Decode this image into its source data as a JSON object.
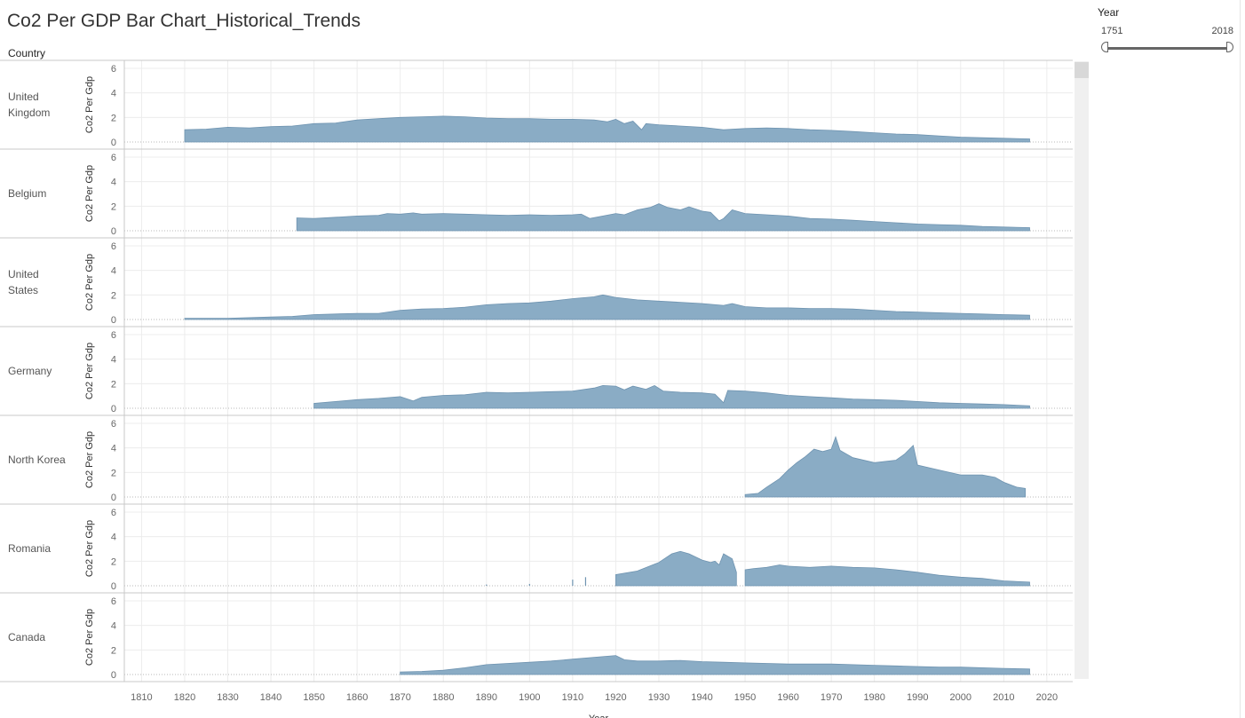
{
  "title": "Co2 Per GDP Bar Chart_Historical_Trends",
  "country_header": "Country",
  "filter": {
    "title": "Year",
    "min_label": "1751",
    "max_label": "2018"
  },
  "colors": {
    "area_fill": "#8aacc5",
    "area_stroke": "#6e93b0",
    "grid": "#ececec",
    "zero_line": "#b9b9b9"
  },
  "chart_data": {
    "type": "area",
    "title": "Co2 Per GDP Bar Chart_Historical_Trends",
    "xlabel": "Year",
    "ylabel": "Co2 Per Gdp",
    "row_label": "Country",
    "xlim": [
      1806,
      2026
    ],
    "xticks": [
      1810,
      1820,
      1830,
      1840,
      1850,
      1860,
      1870,
      1880,
      1890,
      1900,
      1910,
      1920,
      1930,
      1940,
      1950,
      1960,
      1970,
      1980,
      1990,
      2000,
      2010,
      2020
    ],
    "ylim": [
      0,
      6
    ],
    "yticks": [
      0,
      2,
      4,
      6
    ],
    "grid": true,
    "series": [
      {
        "name": "United Kingdom",
        "segments": [
          [
            [
              1820,
              1.0
            ],
            [
              1825,
              1.05
            ],
            [
              1830,
              1.2
            ],
            [
              1835,
              1.15
            ],
            [
              1840,
              1.25
            ],
            [
              1845,
              1.3
            ],
            [
              1850,
              1.5
            ],
            [
              1855,
              1.55
            ],
            [
              1860,
              1.8
            ],
            [
              1865,
              1.9
            ],
            [
              1870,
              2.0
            ],
            [
              1875,
              2.05
            ],
            [
              1880,
              2.1
            ],
            [
              1885,
              2.05
            ],
            [
              1890,
              1.95
            ],
            [
              1895,
              1.9
            ],
            [
              1900,
              1.9
            ],
            [
              1905,
              1.85
            ],
            [
              1910,
              1.85
            ],
            [
              1915,
              1.8
            ],
            [
              1918,
              1.65
            ],
            [
              1920,
              1.85
            ],
            [
              1922,
              1.5
            ],
            [
              1924,
              1.7
            ],
            [
              1926,
              1.0
            ],
            [
              1927,
              1.5
            ],
            [
              1930,
              1.4
            ],
            [
              1935,
              1.3
            ],
            [
              1940,
              1.2
            ],
            [
              1945,
              1.0
            ],
            [
              1950,
              1.1
            ],
            [
              1955,
              1.15
            ],
            [
              1960,
              1.1
            ],
            [
              1965,
              1.0
            ],
            [
              1970,
              0.95
            ],
            [
              1975,
              0.85
            ],
            [
              1980,
              0.75
            ],
            [
              1985,
              0.65
            ],
            [
              1990,
              0.6
            ],
            [
              1995,
              0.5
            ],
            [
              2000,
              0.4
            ],
            [
              2005,
              0.35
            ],
            [
              2010,
              0.3
            ],
            [
              2016,
              0.25
            ]
          ]
        ]
      },
      {
        "name": "Belgium",
        "segments": [
          [
            [
              1846,
              1.05
            ],
            [
              1850,
              1.0
            ],
            [
              1855,
              1.1
            ],
            [
              1860,
              1.2
            ],
            [
              1865,
              1.25
            ],
            [
              1867,
              1.4
            ],
            [
              1870,
              1.35
            ],
            [
              1873,
              1.45
            ],
            [
              1875,
              1.35
            ],
            [
              1880,
              1.4
            ],
            [
              1885,
              1.35
            ],
            [
              1890,
              1.3
            ],
            [
              1895,
              1.25
            ],
            [
              1900,
              1.3
            ],
            [
              1905,
              1.25
            ],
            [
              1910,
              1.3
            ],
            [
              1912,
              1.35
            ],
            [
              1914,
              1.0
            ],
            [
              1917,
              1.2
            ],
            [
              1920,
              1.4
            ],
            [
              1922,
              1.3
            ],
            [
              1925,
              1.7
            ],
            [
              1928,
              1.9
            ],
            [
              1930,
              2.2
            ],
            [
              1932,
              1.9
            ],
            [
              1935,
              1.7
            ],
            [
              1937,
              1.95
            ],
            [
              1940,
              1.6
            ],
            [
              1942,
              1.5
            ],
            [
              1944,
              0.8
            ],
            [
              1945,
              1.0
            ],
            [
              1947,
              1.7
            ],
            [
              1950,
              1.4
            ],
            [
              1955,
              1.3
            ],
            [
              1960,
              1.2
            ],
            [
              1965,
              1.0
            ],
            [
              1970,
              0.95
            ],
            [
              1975,
              0.85
            ],
            [
              1980,
              0.75
            ],
            [
              1985,
              0.65
            ],
            [
              1990,
              0.55
            ],
            [
              1995,
              0.5
            ],
            [
              2000,
              0.45
            ],
            [
              2005,
              0.35
            ],
            [
              2010,
              0.3
            ],
            [
              2016,
              0.25
            ]
          ]
        ]
      },
      {
        "name": "United States",
        "segments": [
          [
            [
              1820,
              0.1
            ],
            [
              1830,
              0.1
            ],
            [
              1840,
              0.2
            ],
            [
              1845,
              0.25
            ],
            [
              1850,
              0.4
            ],
            [
              1855,
              0.45
            ],
            [
              1860,
              0.5
            ],
            [
              1865,
              0.5
            ],
            [
              1870,
              0.75
            ],
            [
              1875,
              0.85
            ],
            [
              1880,
              0.9
            ],
            [
              1885,
              1.0
            ],
            [
              1890,
              1.2
            ],
            [
              1895,
              1.3
            ],
            [
              1900,
              1.35
            ],
            [
              1905,
              1.5
            ],
            [
              1910,
              1.7
            ],
            [
              1915,
              1.85
            ],
            [
              1917,
              2.0
            ],
            [
              1920,
              1.8
            ],
            [
              1925,
              1.6
            ],
            [
              1930,
              1.5
            ],
            [
              1935,
              1.4
            ],
            [
              1940,
              1.3
            ],
            [
              1945,
              1.15
            ],
            [
              1947,
              1.3
            ],
            [
              1950,
              1.05
            ],
            [
              1955,
              0.95
            ],
            [
              1960,
              0.95
            ],
            [
              1965,
              0.9
            ],
            [
              1970,
              0.9
            ],
            [
              1975,
              0.85
            ],
            [
              1980,
              0.75
            ],
            [
              1985,
              0.65
            ],
            [
              1990,
              0.6
            ],
            [
              1995,
              0.55
            ],
            [
              2000,
              0.5
            ],
            [
              2005,
              0.45
            ],
            [
              2010,
              0.4
            ],
            [
              2016,
              0.35
            ]
          ]
        ]
      },
      {
        "name": "Germany",
        "segments": [
          [
            [
              1850,
              0.4
            ],
            [
              1855,
              0.55
            ],
            [
              1860,
              0.7
            ],
            [
              1865,
              0.8
            ],
            [
              1870,
              0.95
            ],
            [
              1873,
              0.6
            ],
            [
              1875,
              0.9
            ],
            [
              1880,
              1.05
            ],
            [
              1885,
              1.1
            ],
            [
              1890,
              1.3
            ],
            [
              1895,
              1.25
            ],
            [
              1900,
              1.3
            ],
            [
              1905,
              1.35
            ],
            [
              1910,
              1.4
            ],
            [
              1915,
              1.65
            ],
            [
              1917,
              1.85
            ],
            [
              1920,
              1.8
            ],
            [
              1922,
              1.5
            ],
            [
              1924,
              1.8
            ],
            [
              1927,
              1.55
            ],
            [
              1929,
              1.85
            ],
            [
              1931,
              1.4
            ],
            [
              1935,
              1.3
            ],
            [
              1940,
              1.25
            ],
            [
              1943,
              1.15
            ],
            [
              1945,
              0.45
            ],
            [
              1946,
              1.45
            ],
            [
              1950,
              1.4
            ],
            [
              1955,
              1.25
            ],
            [
              1960,
              1.05
            ],
            [
              1965,
              0.95
            ],
            [
              1970,
              0.85
            ],
            [
              1975,
              0.75
            ],
            [
              1980,
              0.7
            ],
            [
              1985,
              0.65
            ],
            [
              1990,
              0.55
            ],
            [
              1995,
              0.45
            ],
            [
              2000,
              0.4
            ],
            [
              2005,
              0.35
            ],
            [
              2010,
              0.3
            ],
            [
              2016,
              0.2
            ]
          ]
        ]
      },
      {
        "name": "North Korea",
        "segments": [
          [
            [
              1950,
              0.2
            ],
            [
              1953,
              0.3
            ],
            [
              1955,
              0.8
            ],
            [
              1958,
              1.5
            ],
            [
              1960,
              2.2
            ],
            [
              1962,
              2.8
            ],
            [
              1964,
              3.3
            ],
            [
              1966,
              3.9
            ],
            [
              1968,
              3.7
            ],
            [
              1970,
              3.9
            ],
            [
              1971,
              4.9
            ],
            [
              1972,
              3.8
            ],
            [
              1975,
              3.2
            ],
            [
              1980,
              2.8
            ],
            [
              1985,
              3.0
            ],
            [
              1987,
              3.5
            ],
            [
              1989,
              4.2
            ],
            [
              1990,
              2.6
            ],
            [
              1995,
              2.2
            ],
            [
              2000,
              1.8
            ],
            [
              2005,
              1.8
            ],
            [
              2008,
              1.6
            ],
            [
              2010,
              1.2
            ],
            [
              2013,
              0.8
            ],
            [
              2015,
              0.7
            ]
          ]
        ]
      },
      {
        "name": "Romania",
        "segments": [
          [
            [
              1890,
              0.1
            ]
          ],
          [
            [
              1900,
              0.15
            ]
          ],
          [
            [
              1910,
              0.5
            ]
          ],
          [
            [
              1913,
              0.7
            ]
          ],
          [
            [
              1920,
              0.9
            ],
            [
              1925,
              1.2
            ],
            [
              1930,
              1.9
            ],
            [
              1933,
              2.6
            ],
            [
              1935,
              2.8
            ],
            [
              1937,
              2.6
            ],
            [
              1940,
              2.1
            ],
            [
              1942,
              1.9
            ],
            [
              1943,
              2.0
            ],
            [
              1944,
              1.7
            ],
            [
              1945,
              2.6
            ],
            [
              1947,
              2.2
            ],
            [
              1948,
              1.1
            ]
          ],
          [
            [
              1950,
              1.3
            ],
            [
              1952,
              1.4
            ],
            [
              1955,
              1.5
            ],
            [
              1958,
              1.7
            ],
            [
              1960,
              1.6
            ],
            [
              1965,
              1.5
            ],
            [
              1970,
              1.6
            ],
            [
              1975,
              1.5
            ],
            [
              1980,
              1.45
            ],
            [
              1985,
              1.3
            ],
            [
              1990,
              1.1
            ],
            [
              1995,
              0.85
            ],
            [
              2000,
              0.7
            ],
            [
              2005,
              0.6
            ],
            [
              2010,
              0.4
            ],
            [
              2016,
              0.3
            ]
          ]
        ]
      },
      {
        "name": "Canada",
        "segments": [
          [
            [
              1870,
              0.2
            ],
            [
              1875,
              0.25
            ],
            [
              1880,
              0.35
            ],
            [
              1885,
              0.55
            ],
            [
              1890,
              0.8
            ],
            [
              1895,
              0.9
            ],
            [
              1900,
              1.0
            ],
            [
              1905,
              1.1
            ],
            [
              1910,
              1.25
            ],
            [
              1915,
              1.4
            ],
            [
              1920,
              1.55
            ],
            [
              1922,
              1.2
            ],
            [
              1925,
              1.1
            ],
            [
              1930,
              1.1
            ],
            [
              1935,
              1.15
            ],
            [
              1940,
              1.05
            ],
            [
              1945,
              1.0
            ],
            [
              1950,
              0.95
            ],
            [
              1955,
              0.9
            ],
            [
              1960,
              0.85
            ],
            [
              1965,
              0.85
            ],
            [
              1970,
              0.85
            ],
            [
              1975,
              0.8
            ],
            [
              1980,
              0.75
            ],
            [
              1985,
              0.7
            ],
            [
              1990,
              0.65
            ],
            [
              1995,
              0.6
            ],
            [
              2000,
              0.6
            ],
            [
              2005,
              0.55
            ],
            [
              2010,
              0.5
            ],
            [
              2016,
              0.45
            ]
          ]
        ]
      }
    ]
  }
}
